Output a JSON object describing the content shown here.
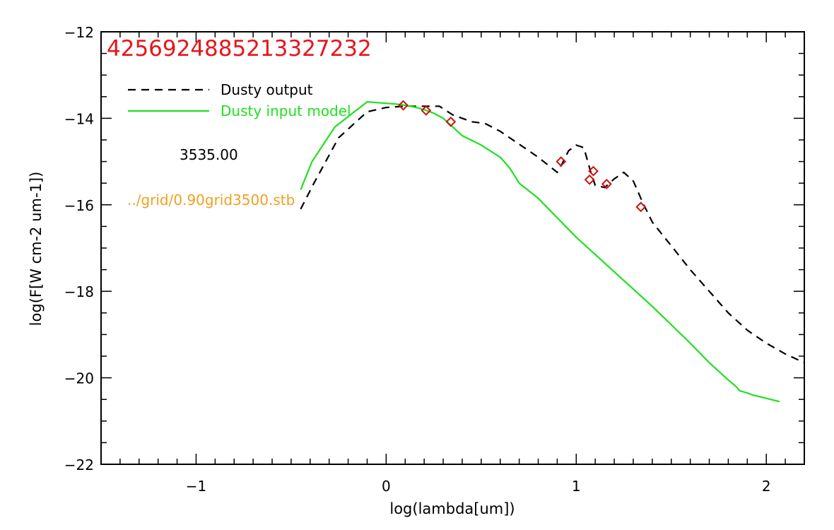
{
  "chart_data": {
    "type": "line",
    "title": "4256924885213327232",
    "xlabel": "log(lambda[um])",
    "ylabel": "log(F[W cm-2 um-1])",
    "xlim": [
      -1.5,
      2.2
    ],
    "ylim": [
      -22,
      -12
    ],
    "xticks": [
      -1,
      0,
      1,
      2
    ],
    "xtick_labels": [
      "−1",
      "0",
      "1",
      "2"
    ],
    "yticks": [
      -22,
      -20,
      -18,
      -16,
      -14,
      -12
    ],
    "ytick_labels": [
      "−22",
      "−20",
      "−18",
      "−16",
      "−14",
      "−12"
    ],
    "grid": false,
    "legend_position": "top-left",
    "annotations": {
      "temperature": "3535.00",
      "grid_file": "../grid/0.90grid3500.stb"
    },
    "colors": {
      "title": "#e8141b",
      "output": "#000000",
      "input": "#20e020",
      "observed": "#cc1010",
      "grid_file": "#f0a020"
    },
    "series": [
      {
        "name": "Dusty output",
        "style": "dashed",
        "x": [
          -0.45,
          -0.38,
          -0.25,
          -0.1,
          0.0,
          0.1,
          0.2,
          0.28,
          0.35,
          0.45,
          0.52,
          0.6,
          0.7,
          0.8,
          0.9,
          0.92,
          0.96,
          1.0,
          1.04,
          1.08,
          1.1,
          1.15,
          1.2,
          1.25,
          1.3,
          1.35,
          1.4,
          1.5,
          1.6,
          1.7,
          1.8,
          1.9,
          2.0,
          2.1,
          2.2
        ],
        "y": [
          -16.1,
          -15.5,
          -14.45,
          -13.85,
          -13.75,
          -13.72,
          -13.72,
          -13.72,
          -13.92,
          -14.08,
          -14.12,
          -14.3,
          -14.6,
          -14.9,
          -15.25,
          -15.1,
          -14.75,
          -14.62,
          -14.68,
          -15.3,
          -15.55,
          -15.6,
          -15.4,
          -15.25,
          -15.45,
          -15.95,
          -16.4,
          -16.95,
          -17.5,
          -18.0,
          -18.5,
          -18.9,
          -19.2,
          -19.45,
          -19.65
        ]
      },
      {
        "name": "Dusty input model",
        "style": "solid",
        "x": [
          -0.45,
          -0.39,
          -0.27,
          -0.1,
          0.05,
          0.1,
          0.15,
          0.2,
          0.25,
          0.3,
          0.35,
          0.4,
          0.5,
          0.6,
          0.65,
          0.7,
          0.8,
          0.9,
          1.0,
          1.2,
          1.4,
          1.6,
          1.7,
          1.8,
          1.84,
          1.86,
          1.9,
          1.93,
          2.07
        ],
        "y": [
          -15.65,
          -15.0,
          -14.2,
          -13.62,
          -13.67,
          -13.7,
          -13.74,
          -13.8,
          -13.88,
          -14.0,
          -14.2,
          -14.4,
          -14.62,
          -14.9,
          -15.15,
          -15.5,
          -15.85,
          -16.3,
          -16.75,
          -17.55,
          -18.35,
          -19.2,
          -19.65,
          -20.05,
          -20.2,
          -20.3,
          -20.35,
          -20.4,
          -20.55
        ]
      },
      {
        "name": "observed",
        "style": "markers",
        "x": [
          0.09,
          0.21,
          0.34,
          0.92,
          1.07,
          1.09,
          1.16,
          1.34
        ],
        "y": [
          -13.7,
          -13.82,
          -14.08,
          -15.0,
          -15.42,
          -15.22,
          -15.52,
          -16.05
        ]
      }
    ]
  }
}
